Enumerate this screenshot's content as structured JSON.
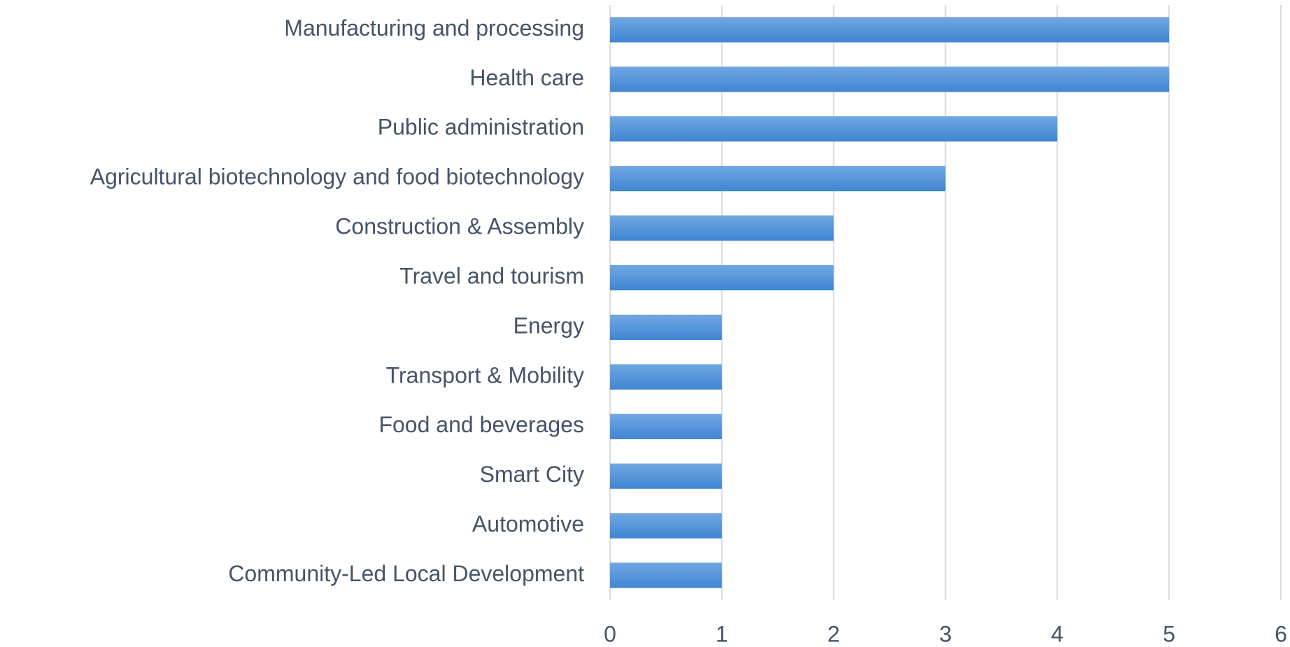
{
  "chart_data": {
    "type": "barh",
    "categories": [
      "Manufacturing and processing",
      "Health care",
      "Public administration",
      "Agricultural biotechnology and food biotechnology",
      "Construction & Assembly",
      "Travel and tourism",
      "Energy",
      "Transport & Mobility",
      "Food and beverages",
      "Smart City",
      "Automotive",
      "Community-Led Local Development"
    ],
    "values": [
      5,
      5,
      4,
      3,
      2,
      2,
      1,
      1,
      1,
      1,
      1,
      1
    ],
    "color": "#4a8fd6",
    "xlim": [
      0,
      6
    ],
    "xticks": [
      0,
      1,
      2,
      3,
      4,
      5,
      6
    ],
    "grid": true
  }
}
